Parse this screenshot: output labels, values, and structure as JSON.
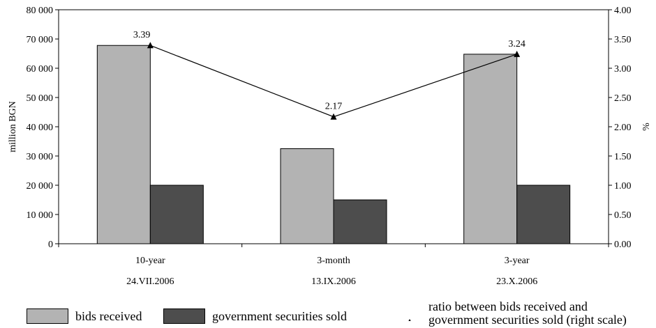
{
  "chart_data": {
    "type": "bar",
    "categories": [
      "10-year",
      "3-month",
      "3-year"
    ],
    "category_dates": [
      "24.VII.2006",
      "13.IX.2006",
      "23.X.2006"
    ],
    "series": [
      {
        "name": "bids received",
        "values": [
          67800,
          32500,
          64800
        ],
        "color": "#b3b3b3"
      },
      {
        "name": "government securities sold",
        "values": [
          20000,
          15000,
          20000
        ],
        "color": "#4d4d4d"
      }
    ],
    "line_series": {
      "name": "ratio between bids received and government securities sold (right scale)",
      "values": [
        3.39,
        2.17,
        3.24
      ],
      "labels": [
        "3.39",
        "2.17",
        "3.24"
      ],
      "marker": "triangle",
      "color": "#000000"
    },
    "ylabel": "million BGN",
    "ylabel_right": "%",
    "ylim": [
      0,
      80000
    ],
    "ylim_right": [
      0,
      4.0
    ],
    "yticks": [
      "0",
      "10 000",
      "20 000",
      "30 000",
      "40 000",
      "50 000",
      "60 000",
      "70 000",
      "80 000"
    ],
    "yticks_right": [
      "0.00",
      "0.50",
      "1.00",
      "1.50",
      "2.00",
      "2.50",
      "3.00",
      "3.50",
      "4.00"
    ],
    "grid": false,
    "legend_position": "bottom"
  },
  "legend": {
    "bids_label": "bids received",
    "sold_label": "government securities sold",
    "ratio_label_line1": "ratio between bids received and",
    "ratio_label_line2": "government securities sold (right scale)"
  }
}
